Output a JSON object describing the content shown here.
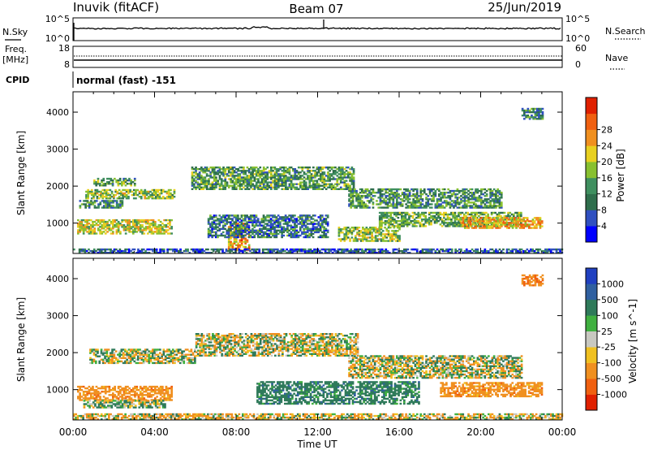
{
  "header": {
    "site": "Inuvik (fitACF)",
    "beam": "Beam 07",
    "date": "25/Jun/2019"
  },
  "sky_panel": {
    "left_label": "N.Sky",
    "left_ticks": [
      "10^5",
      "10^0"
    ],
    "right_label": "N.Search",
    "right_ticks": [
      "10^5",
      "10^0"
    ]
  },
  "freq_panel": {
    "left_label_1": "Freq.",
    "left_label_2": "[MHz]",
    "left_ticks": [
      "18",
      "8"
    ],
    "right_label": "Nave",
    "right_ticks": [
      "60",
      "0"
    ]
  },
  "cpid": {
    "label": "CPID",
    "value": "normal (fast) -151"
  },
  "time_axis": {
    "ticks": [
      "00:00",
      "04:00",
      "08:00",
      "12:00",
      "16:00",
      "20:00",
      "00:00"
    ],
    "label": "Time UT"
  },
  "chart_data": [
    {
      "type": "heatmap",
      "title": "",
      "xlabel": "Time UT",
      "ylabel": "Slant Range [km]",
      "x_range_hours": [
        0,
        24
      ],
      "ylim": [
        180,
        4550
      ],
      "y_ticks": [
        1000,
        2000,
        3000,
        4000
      ],
      "colorbar": {
        "label": "Power [dB]",
        "ticks": [
          "4",
          "8",
          "12",
          "16",
          "20",
          "24",
          "28"
        ],
        "colors": [
          "#0000ff",
          "#3050c0",
          "#2f6e4c",
          "#3f8f5f",
          "#88c030",
          "#e8d020",
          "#f09020",
          "#f06010",
          "#e02000"
        ]
      },
      "echo_bands": [
        {
          "t0": 0.2,
          "t1": 4.8,
          "r0": 700,
          "r1": 1100,
          "value": 20
        },
        {
          "t0": 0.3,
          "t1": 2.4,
          "r0": 1400,
          "r1": 1600,
          "value": 12
        },
        {
          "t0": 0.6,
          "t1": 5.0,
          "r0": 1650,
          "r1": 1900,
          "value": 18
        },
        {
          "t0": 1.0,
          "t1": 3.0,
          "r0": 2000,
          "r1": 2200,
          "value": 14
        },
        {
          "t0": 5.8,
          "t1": 13.8,
          "r0": 1900,
          "r1": 2500,
          "value": 14
        },
        {
          "t0": 7.6,
          "t1": 8.6,
          "r0": 250,
          "r1": 1000,
          "value": 26
        },
        {
          "t0": 6.6,
          "t1": 12.5,
          "r0": 600,
          "r1": 1200,
          "value": 10
        },
        {
          "t0": 13.5,
          "t1": 21.0,
          "r0": 1400,
          "r1": 1900,
          "value": 13
        },
        {
          "t0": 15.0,
          "t1": 22.0,
          "r0": 900,
          "r1": 1300,
          "value": 15
        },
        {
          "t0": 19.0,
          "t1": 23.0,
          "r0": 850,
          "r1": 1150,
          "value": 24
        },
        {
          "t0": 13.0,
          "t1": 16.0,
          "r0": 500,
          "r1": 900,
          "value": 18
        },
        {
          "t0": 22.0,
          "t1": 23.0,
          "r0": 3800,
          "r1": 4100,
          "value": 12
        },
        {
          "t0": 0.0,
          "t1": 24.0,
          "r0": 180,
          "r1": 300,
          "value": 8
        }
      ]
    },
    {
      "type": "heatmap",
      "title": "",
      "xlabel": "Time UT",
      "ylabel": "Slant Range [km]",
      "x_range_hours": [
        0,
        24
      ],
      "ylim": [
        180,
        4550
      ],
      "y_ticks": [
        1000,
        2000,
        3000,
        4000
      ],
      "colorbar": {
        "label": "Velocity [m s^-1]",
        "ticks": [
          "1000",
          "500",
          "100",
          "25",
          "-25",
          "-100",
          "-500",
          "-1000"
        ],
        "colors": [
          "#2040c0",
          "#3060a0",
          "#2f7a5a",
          "#40b040",
          "#c8c8c0",
          "#f0c020",
          "#f09020",
          "#f06010",
          "#e02000"
        ]
      },
      "echo_bands": [
        {
          "t0": 0.2,
          "t1": 4.8,
          "r0": 700,
          "r1": 1100,
          "value": -300
        },
        {
          "t0": 0.5,
          "t1": 4.5,
          "r0": 500,
          "r1": 700,
          "value": 100
        },
        {
          "t0": 0.8,
          "t1": 6.0,
          "r0": 1700,
          "r1": 2100,
          "value": 0
        },
        {
          "t0": 6.0,
          "t1": 14.0,
          "r0": 1900,
          "r1": 2500,
          "value": 0
        },
        {
          "t0": 9.0,
          "t1": 17.0,
          "r0": 600,
          "r1": 1200,
          "value": 300
        },
        {
          "t0": 13.5,
          "t1": 22.0,
          "r0": 1300,
          "r1": 1900,
          "value": 0
        },
        {
          "t0": 18.0,
          "t1": 23.0,
          "r0": 800,
          "r1": 1200,
          "value": -300
        },
        {
          "t0": 22.0,
          "t1": 23.0,
          "r0": 3800,
          "r1": 4100,
          "value": -400
        },
        {
          "t0": 0.0,
          "t1": 24.0,
          "r0": 180,
          "r1": 350,
          "value": -60
        }
      ]
    }
  ]
}
